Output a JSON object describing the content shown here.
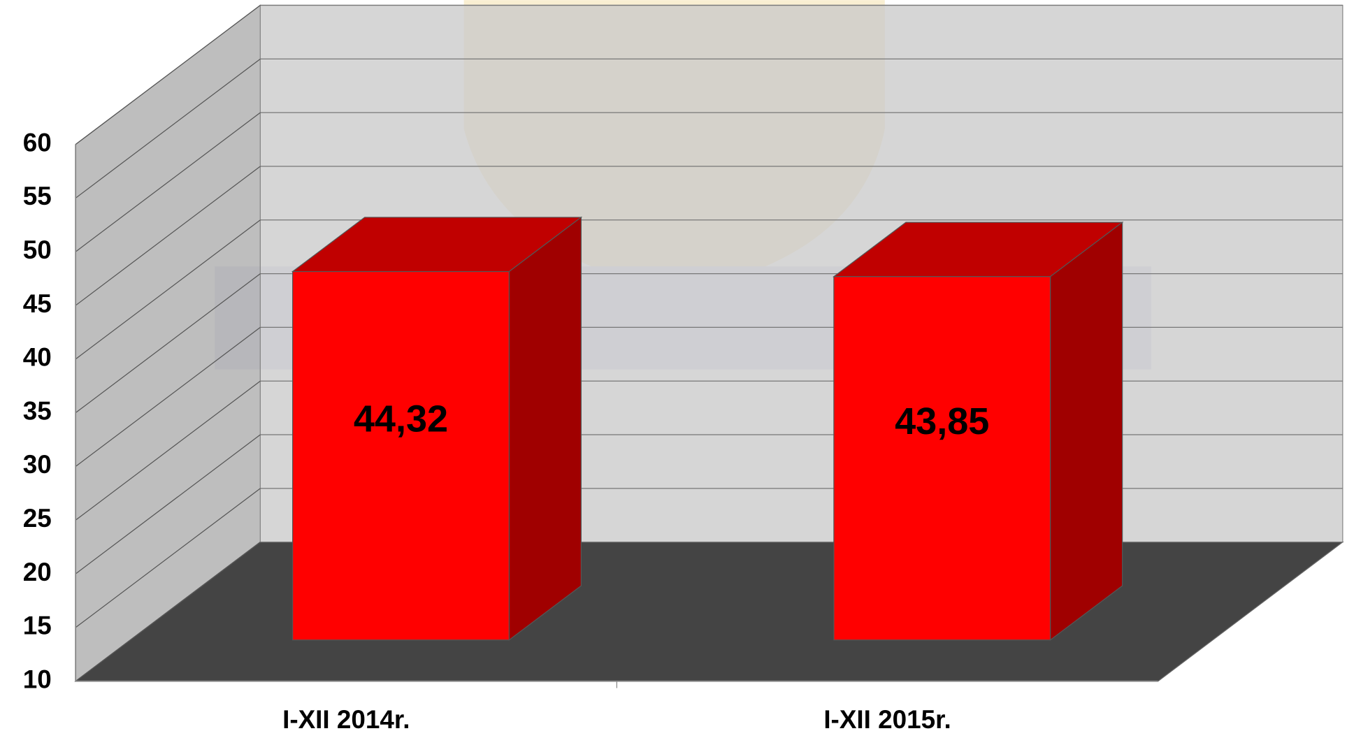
{
  "chart_data": {
    "type": "bar3d",
    "categories": [
      "I-XII 2014r.",
      "I-XII 2015r."
    ],
    "values": [
      44.32,
      43.85
    ],
    "value_labels": [
      "44,32",
      "43,85"
    ],
    "color": "#ff0000",
    "ylim": [
      10,
      60
    ],
    "yticks": [
      10,
      15,
      20,
      25,
      30,
      35,
      40,
      45,
      50,
      55,
      60
    ],
    "grid": true
  }
}
